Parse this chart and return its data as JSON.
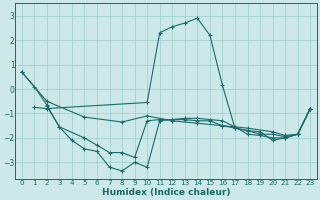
{
  "xlabel": "Humidex (Indice chaleur)",
  "bg_color": "#cce8e8",
  "grid_color": "#99cccc",
  "line_color": "#1a6b6b",
  "xlim": [
    -0.5,
    23.5
  ],
  "ylim": [
    -3.7,
    3.5
  ],
  "yticks": [
    -3,
    -2,
    -1,
    0,
    1,
    2,
    3
  ],
  "xticks": [
    0,
    1,
    2,
    3,
    4,
    5,
    6,
    7,
    8,
    9,
    10,
    11,
    12,
    13,
    14,
    15,
    16,
    17,
    18,
    19,
    20,
    21,
    22,
    23
  ],
  "series": [
    {
      "x": [
        0,
        1,
        2,
        3,
        4,
        5,
        6,
        7,
        8,
        9,
        10,
        11,
        12,
        13,
        14,
        15,
        16,
        17,
        18,
        19,
        20,
        21,
        22,
        23
      ],
      "y": [
        0.7,
        0.1,
        -0.65,
        -1.55,
        -2.1,
        -2.45,
        -2.55,
        -3.2,
        -3.35,
        -3.0,
        -3.2,
        -1.3,
        -1.25,
        -1.2,
        -1.2,
        -1.25,
        -1.3,
        -1.55,
        -1.85,
        -1.9,
        -2.0,
        -2.0,
        -1.85,
        -0.8
      ]
    },
    {
      "x": [
        1,
        2,
        10,
        11,
        12,
        13,
        14,
        15,
        16,
        17,
        18,
        19,
        20,
        21,
        22,
        23
      ],
      "y": [
        -0.75,
        -0.8,
        -0.55,
        2.3,
        2.55,
        2.7,
        2.9,
        2.2,
        0.15,
        -1.6,
        -1.7,
        -1.75,
        -2.1,
        -2.0,
        -1.85,
        -0.8
      ]
    },
    {
      "x": [
        0,
        2,
        5,
        8,
        10,
        12,
        14,
        16,
        18,
        20,
        21,
        22,
        23
      ],
      "y": [
        0.7,
        -0.5,
        -1.15,
        -1.35,
        -1.1,
        -1.3,
        -1.4,
        -1.5,
        -1.6,
        -1.75,
        -1.9,
        -1.85,
        -0.8
      ]
    },
    {
      "x": [
        2,
        3,
        5,
        6,
        7,
        8,
        9,
        10,
        11,
        12,
        13,
        14,
        15,
        16,
        17,
        18,
        19,
        20,
        21,
        22,
        23
      ],
      "y": [
        -0.7,
        -1.55,
        -2.0,
        -2.3,
        -2.6,
        -2.6,
        -2.8,
        -1.3,
        -1.25,
        -1.25,
        -1.25,
        -1.3,
        -1.3,
        -1.5,
        -1.6,
        -1.7,
        -1.85,
        -1.85,
        -1.95,
        -1.85,
        -0.8
      ]
    }
  ]
}
